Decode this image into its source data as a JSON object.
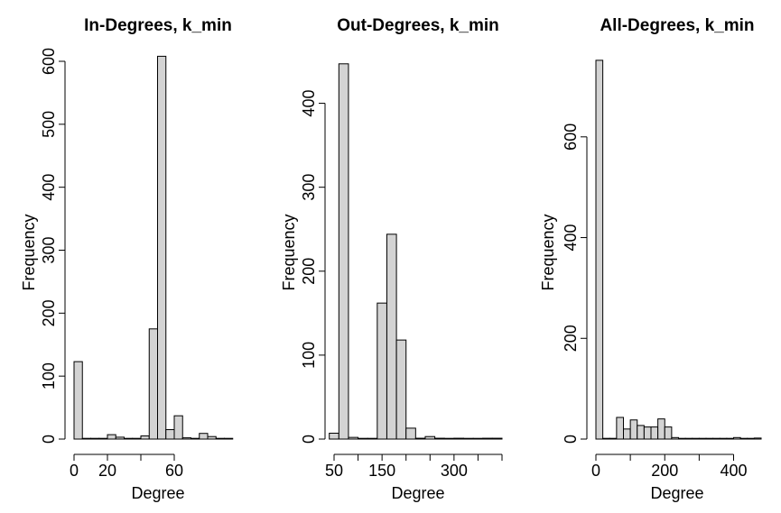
{
  "chart_data": [
    {
      "type": "bar",
      "title": "In-Degrees, k_min",
      "xlabel": "Degree",
      "ylabel": "Frequency",
      "xticks": [
        0,
        20,
        40,
        60
      ],
      "xtick_labels": [
        "0",
        "20",
        "",
        "60"
      ],
      "yticks": [
        0,
        100,
        200,
        300,
        400,
        500,
        600
      ],
      "xlim": [
        0,
        100
      ],
      "ylim": [
        0,
        600
      ],
      "bin_width": 5,
      "bins": [
        {
          "x0": 0,
          "x1": 5,
          "value": 123
        },
        {
          "x0": 5,
          "x1": 10,
          "value": 0
        },
        {
          "x0": 10,
          "x1": 15,
          "value": 0
        },
        {
          "x0": 15,
          "x1": 20,
          "value": 0
        },
        {
          "x0": 20,
          "x1": 25,
          "value": 7
        },
        {
          "x0": 25,
          "x1": 30,
          "value": 3
        },
        {
          "x0": 30,
          "x1": 35,
          "value": 0
        },
        {
          "x0": 35,
          "x1": 40,
          "value": 1
        },
        {
          "x0": 40,
          "x1": 45,
          "value": 5
        },
        {
          "x0": 45,
          "x1": 50,
          "value": 175
        },
        {
          "x0": 50,
          "x1": 55,
          "value": 608
        },
        {
          "x0": 55,
          "x1": 60,
          "value": 15
        },
        {
          "x0": 60,
          "x1": 65,
          "value": 37
        },
        {
          "x0": 65,
          "x1": 70,
          "value": 2
        },
        {
          "x0": 70,
          "x1": 75,
          "value": 1
        },
        {
          "x0": 75,
          "x1": 80,
          "value": 9
        },
        {
          "x0": 80,
          "x1": 85,
          "value": 4
        },
        {
          "x0": 85,
          "x1": 90,
          "value": 1
        },
        {
          "x0": 90,
          "x1": 95,
          "value": 1
        }
      ]
    },
    {
      "type": "bar",
      "title": "Out-Degrees, k_min",
      "xlabel": "Degree",
      "ylabel": "Frequency",
      "xticks": [
        50,
        100,
        150,
        200,
        250,
        300,
        350,
        400
      ],
      "xtick_labels": [
        "50",
        "",
        "150",
        "",
        "",
        "300",
        "",
        ""
      ],
      "yticks": [
        0,
        100,
        200,
        300,
        400
      ],
      "xlim": [
        50,
        400
      ],
      "ylim": [
        0,
        450
      ],
      "bin_width": 20,
      "bins": [
        {
          "x0": 40,
          "x1": 60,
          "value": 7
        },
        {
          "x0": 60,
          "x1": 80,
          "value": 447
        },
        {
          "x0": 80,
          "x1": 100,
          "value": 2
        },
        {
          "x0": 100,
          "x1": 120,
          "value": 0
        },
        {
          "x0": 120,
          "x1": 140,
          "value": 0
        },
        {
          "x0": 140,
          "x1": 160,
          "value": 162
        },
        {
          "x0": 160,
          "x1": 180,
          "value": 244
        },
        {
          "x0": 180,
          "x1": 200,
          "value": 118
        },
        {
          "x0": 200,
          "x1": 220,
          "value": 13
        },
        {
          "x0": 220,
          "x1": 240,
          "value": 1
        },
        {
          "x0": 240,
          "x1": 260,
          "value": 3
        },
        {
          "x0": 260,
          "x1": 280,
          "value": 1
        },
        {
          "x0": 280,
          "x1": 300,
          "value": 0
        },
        {
          "x0": 300,
          "x1": 320,
          "value": 1
        },
        {
          "x0": 320,
          "x1": 340,
          "value": 0
        },
        {
          "x0": 340,
          "x1": 360,
          "value": 0
        },
        {
          "x0": 360,
          "x1": 380,
          "value": 1
        },
        {
          "x0": 380,
          "x1": 400,
          "value": 1
        }
      ]
    },
    {
      "type": "bar",
      "title": "All-Degrees, k_min",
      "xlabel": "Degree",
      "ylabel": "Frequency",
      "xticks": [
        0,
        100,
        200,
        300,
        400
      ],
      "xtick_labels": [
        "0",
        "",
        "200",
        "",
        "400"
      ],
      "yticks": [
        0,
        200,
        400,
        600
      ],
      "xlim": [
        0,
        480
      ],
      "ylim": [
        0,
        750
      ],
      "bin_width": 20,
      "bins": [
        {
          "x0": 0,
          "x1": 20,
          "value": 752
        },
        {
          "x0": 20,
          "x1": 40,
          "value": 0
        },
        {
          "x0": 40,
          "x1": 60,
          "value": 0
        },
        {
          "x0": 60,
          "x1": 80,
          "value": 43
        },
        {
          "x0": 80,
          "x1": 100,
          "value": 20
        },
        {
          "x0": 100,
          "x1": 120,
          "value": 38
        },
        {
          "x0": 120,
          "x1": 140,
          "value": 27
        },
        {
          "x0": 140,
          "x1": 160,
          "value": 24
        },
        {
          "x0": 160,
          "x1": 180,
          "value": 24
        },
        {
          "x0": 180,
          "x1": 200,
          "value": 40
        },
        {
          "x0": 200,
          "x1": 220,
          "value": 24
        },
        {
          "x0": 220,
          "x1": 240,
          "value": 3
        },
        {
          "x0": 240,
          "x1": 260,
          "value": 0
        },
        {
          "x0": 260,
          "x1": 280,
          "value": 0
        },
        {
          "x0": 280,
          "x1": 300,
          "value": 0
        },
        {
          "x0": 300,
          "x1": 320,
          "value": 0
        },
        {
          "x0": 320,
          "x1": 340,
          "value": 0
        },
        {
          "x0": 340,
          "x1": 360,
          "value": 0
        },
        {
          "x0": 360,
          "x1": 380,
          "value": 0
        },
        {
          "x0": 380,
          "x1": 400,
          "value": 0
        },
        {
          "x0": 400,
          "x1": 420,
          "value": 3
        },
        {
          "x0": 420,
          "x1": 440,
          "value": 0
        },
        {
          "x0": 440,
          "x1": 460,
          "value": 0
        },
        {
          "x0": 460,
          "x1": 480,
          "value": 2
        }
      ]
    }
  ]
}
